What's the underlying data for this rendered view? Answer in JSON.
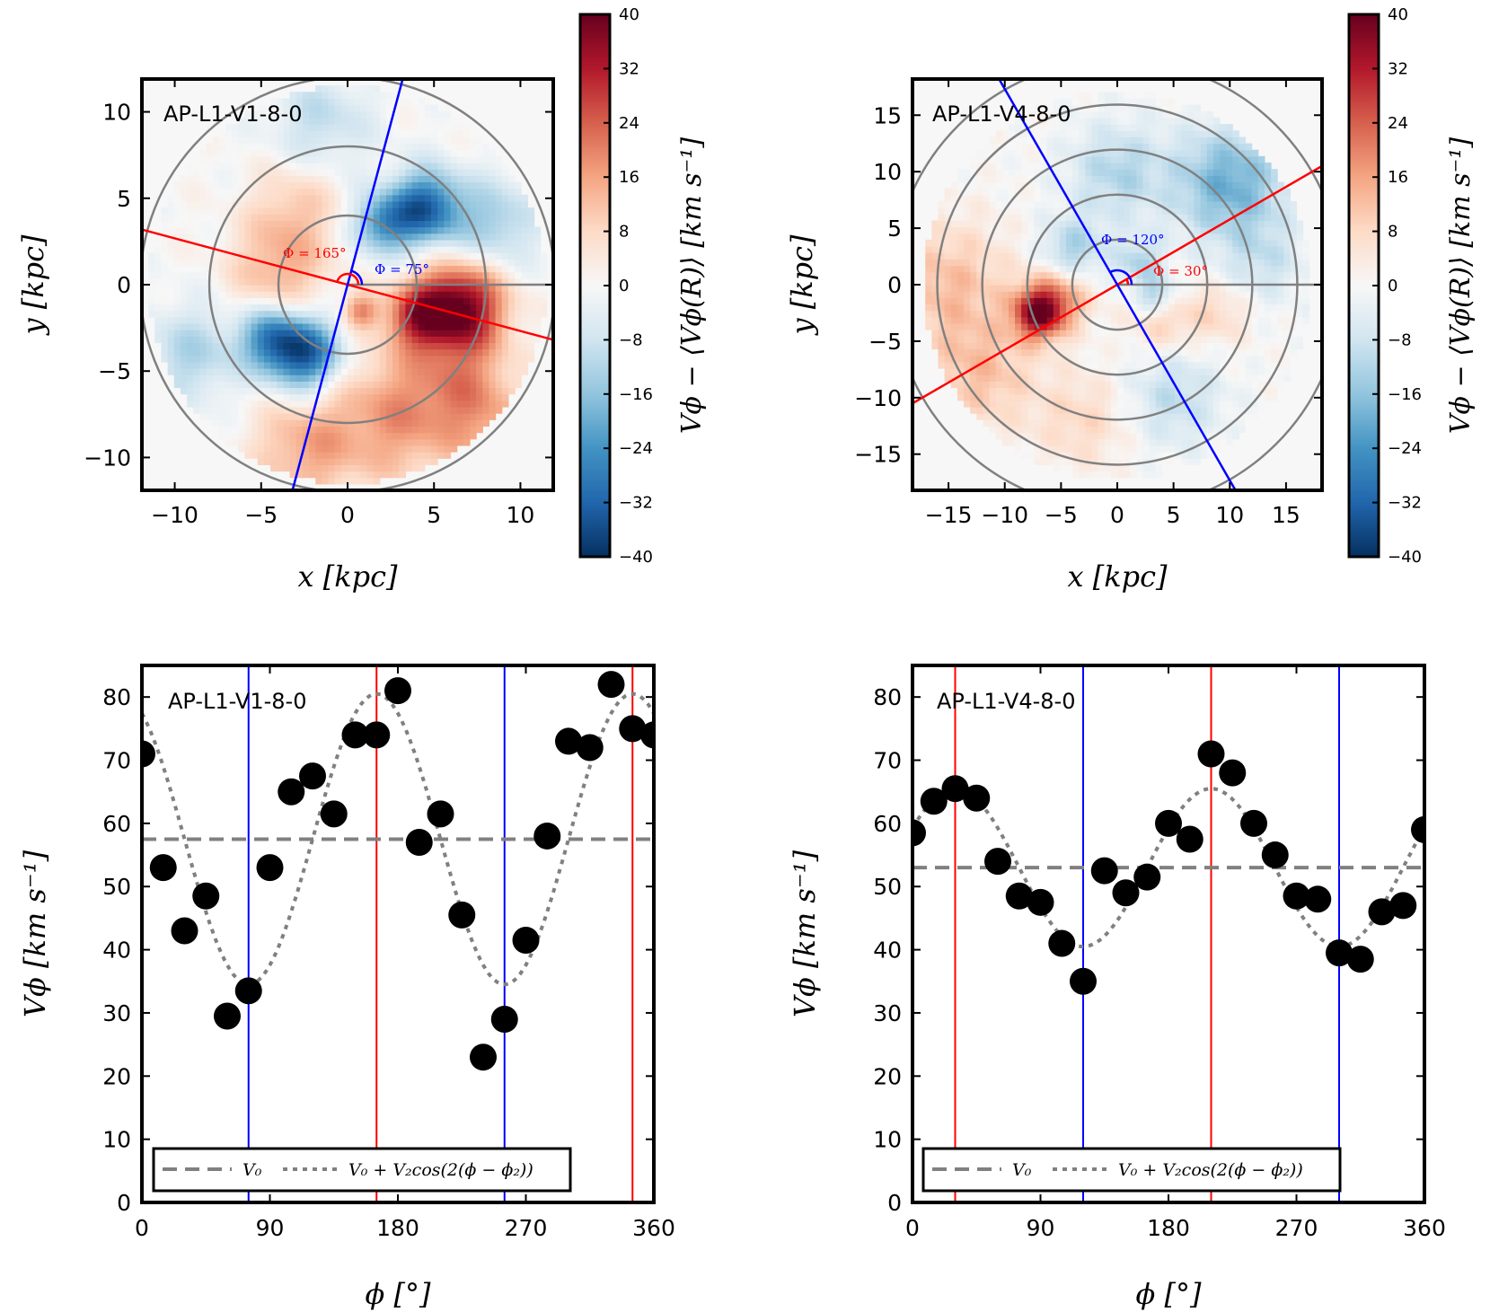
{
  "chart_data": [
    {
      "id": "map1",
      "type": "heatmap",
      "label": "AP-L1-V1-8-0",
      "xlabel": "x [kpc]",
      "ylabel": "y [kpc]",
      "xlim": [
        -11.9,
        11.9
      ],
      "ylim": [
        -11.9,
        11.9
      ],
      "xticks": [
        -10,
        -5,
        0,
        5,
        10
      ],
      "yticks": [
        -10,
        -5,
        0,
        5,
        10
      ],
      "xtick_labels": [
        "−10",
        "−5",
        "0",
        "5",
        "10"
      ],
      "ytick_labels": [
        "−10",
        "−5",
        "0",
        "5",
        "10"
      ],
      "rings_kpc": [
        4,
        8,
        12
      ],
      "data_radius": 11.5,
      "bar_angle_deg": 165,
      "minor_angle_deg": 75,
      "annotations": [
        "Φ = 165°",
        "Φ = 75°"
      ],
      "color_red": "#ff0000",
      "color_blue": "#0000ff",
      "blobs": [
        {
          "x": 6.5,
          "y": -1.3,
          "s": 1.8,
          "v": 40
        },
        {
          "x": 4.0,
          "y": -1.8,
          "s": 1.3,
          "v": 22
        },
        {
          "x": -4.0,
          "y": 0.8,
          "s": 2.0,
          "v": 14
        },
        {
          "x": -3.0,
          "y": 4.5,
          "s": 1.8,
          "v": 10
        },
        {
          "x": 3.0,
          "y": -7.5,
          "s": 2.8,
          "v": 17
        },
        {
          "x": -2.5,
          "y": -9.5,
          "s": 2.2,
          "v": 14
        },
        {
          "x": 7.0,
          "y": -6.0,
          "s": 2.0,
          "v": 13
        },
        {
          "x": 0.8,
          "y": -1.5,
          "s": 0.7,
          "v": 18
        },
        {
          "x": 4.5,
          "y": 4.5,
          "s": 1.5,
          "v": -32
        },
        {
          "x": 2.0,
          "y": 3.5,
          "s": 1.2,
          "v": -22
        },
        {
          "x": -2.5,
          "y": -4.0,
          "s": 1.5,
          "v": -34
        },
        {
          "x": -4.5,
          "y": -3.0,
          "s": 1.3,
          "v": -22
        },
        {
          "x": 8.5,
          "y": 3.5,
          "s": 1.8,
          "v": -14
        },
        {
          "x": -9.0,
          "y": -4.0,
          "s": 2.0,
          "v": -12
        },
        {
          "x": -1.5,
          "y": 9.5,
          "s": 2.0,
          "v": -10
        },
        {
          "x": 9.5,
          "y": -9.5,
          "s": 2.0,
          "v": 12
        }
      ]
    },
    {
      "id": "map2",
      "type": "heatmap",
      "label": "AP-L1-V4-8-0",
      "xlabel": "x [kpc]",
      "ylabel": "y [kpc]",
      "xlim": [
        -18.2,
        18.2
      ],
      "ylim": [
        -18.2,
        18.2
      ],
      "xticks": [
        -15,
        -10,
        -5,
        0,
        5,
        10,
        15
      ],
      "yticks": [
        -15,
        -10,
        -5,
        0,
        5,
        10,
        15
      ],
      "xtick_labels": [
        "−15",
        "−10",
        "−5",
        "0",
        "5",
        "10",
        "15"
      ],
      "ytick_labels": [
        "−15",
        "−10",
        "−5",
        "0",
        "5",
        "10",
        "15"
      ],
      "rings_kpc": [
        4,
        8,
        12,
        16,
        20
      ],
      "data_radius": 17.2,
      "bar_angle_deg": 30,
      "minor_angle_deg": 120,
      "annotations": [
        "Φ = 120°",
        "Φ = 30°"
      ],
      "color_red": "#ff0000",
      "color_blue": "#0000ff",
      "blobs": [
        {
          "x": -7.0,
          "y": -2.5,
          "s": 1.6,
          "v": 34
        },
        {
          "x": -5.0,
          "y": -1.0,
          "s": 2.0,
          "v": 15
        },
        {
          "x": -15.0,
          "y": 0.0,
          "s": 4.0,
          "v": 12
        },
        {
          "x": -12.0,
          "y": -8.0,
          "s": 3.5,
          "v": 11
        },
        {
          "x": 4.0,
          "y": -3.0,
          "s": 2.0,
          "v": 10
        },
        {
          "x": 9.0,
          "y": -2.5,
          "s": 2.0,
          "v": 8
        },
        {
          "x": -3.0,
          "y": -12.0,
          "s": 3.0,
          "v": 8
        },
        {
          "x": 10.0,
          "y": 9.0,
          "s": 3.5,
          "v": -20
        },
        {
          "x": 0.0,
          "y": 10.0,
          "s": 3.0,
          "v": -12
        },
        {
          "x": -4.0,
          "y": 3.0,
          "s": 2.0,
          "v": -14
        },
        {
          "x": 2.0,
          "y": 2.0,
          "s": 1.5,
          "v": -12
        },
        {
          "x": 3.5,
          "y": -1.0,
          "s": 1.2,
          "v": -16
        },
        {
          "x": 5.0,
          "y": -10.0,
          "s": 3.0,
          "v": -10
        },
        {
          "x": 13.0,
          "y": 2.0,
          "s": 2.5,
          "v": -8
        }
      ]
    },
    {
      "id": "profile1",
      "type": "scatter",
      "label": "AP-L1-V1-8-0",
      "xlabel": "ϕ [°]",
      "ylabel": "Vϕ [km s⁻¹]",
      "xlim": [
        0,
        360
      ],
      "ylim": [
        0,
        85
      ],
      "xticks": [
        0,
        90,
        180,
        270,
        360
      ],
      "yticks": [
        0,
        10,
        20,
        30,
        40,
        50,
        60,
        70,
        80
      ],
      "x": [
        0,
        15,
        30,
        45,
        60,
        75,
        90,
        105,
        120,
        135,
        150,
        165,
        180,
        195,
        210,
        225,
        240,
        255,
        270,
        285,
        300,
        315,
        330,
        345,
        360
      ],
      "values": [
        71,
        53,
        43,
        48.5,
        29.5,
        33.5,
        53,
        65,
        67.5,
        61.5,
        74,
        74,
        81,
        57,
        61.5,
        45.5,
        23,
        29,
        41.5,
        58,
        73,
        72,
        82,
        75,
        74
      ],
      "V0": 57.5,
      "V2": 23,
      "phi2": 165,
      "red_lines": [
        165,
        345
      ],
      "blue_lines": [
        75,
        255
      ],
      "legend": [
        "V₀",
        "V₀ + V₂cos(2(ϕ − ϕ₂))"
      ],
      "legend_loc": "lower-center"
    },
    {
      "id": "profile2",
      "type": "scatter",
      "label": "AP-L1-V4-8-0",
      "xlabel": "ϕ [°]",
      "ylabel": "Vϕ [km s⁻¹]",
      "xlim": [
        0,
        360
      ],
      "ylim": [
        0,
        85
      ],
      "xticks": [
        0,
        90,
        180,
        270,
        360
      ],
      "yticks": [
        0,
        10,
        20,
        30,
        40,
        50,
        60,
        70,
        80
      ],
      "x": [
        0,
        15,
        30,
        45,
        60,
        75,
        90,
        105,
        120,
        135,
        150,
        165,
        180,
        195,
        210,
        225,
        240,
        255,
        270,
        285,
        300,
        315,
        330,
        345,
        360
      ],
      "values": [
        58.5,
        63.5,
        65.5,
        64,
        54,
        48.5,
        47.5,
        41,
        35,
        52.5,
        49,
        51.5,
        60,
        57.5,
        71,
        68,
        60,
        55,
        48.5,
        48,
        39.5,
        38.5,
        46,
        47,
        59
      ],
      "V0": 53,
      "V2": 12.5,
      "phi2": 30,
      "red_lines": [
        30,
        210
      ],
      "blue_lines": [
        120,
        300
      ],
      "legend": [
        "V₀",
        "V₀ + V₂cos(2(ϕ − ϕ₂))"
      ],
      "legend_loc": "lower-center"
    }
  ],
  "colorbars": [
    {
      "range": [
        -40,
        40
      ],
      "ticks": [
        "40",
        "32",
        "24",
        "16",
        "8",
        "0",
        "−8",
        "−16",
        "−24",
        "−32",
        "−40"
      ],
      "label": "Vϕ − ⟨Vϕ(R)⟩ [km s⁻¹]"
    },
    {
      "range": [
        -40,
        40
      ],
      "ticks": [
        "40",
        "32",
        "24",
        "16",
        "8",
        "0",
        "−8",
        "−16",
        "−24",
        "−32",
        "−40"
      ],
      "label": "Vϕ − ⟨Vϕ(R)⟩ [km s⁻¹]"
    }
  ],
  "colormap": [
    "#053061",
    "#2166ac",
    "#4393c3",
    "#92c5de",
    "#d1e5f0",
    "#f7f7f7",
    "#fddbc7",
    "#f4a582",
    "#d6604d",
    "#b2182b",
    "#67001f"
  ]
}
